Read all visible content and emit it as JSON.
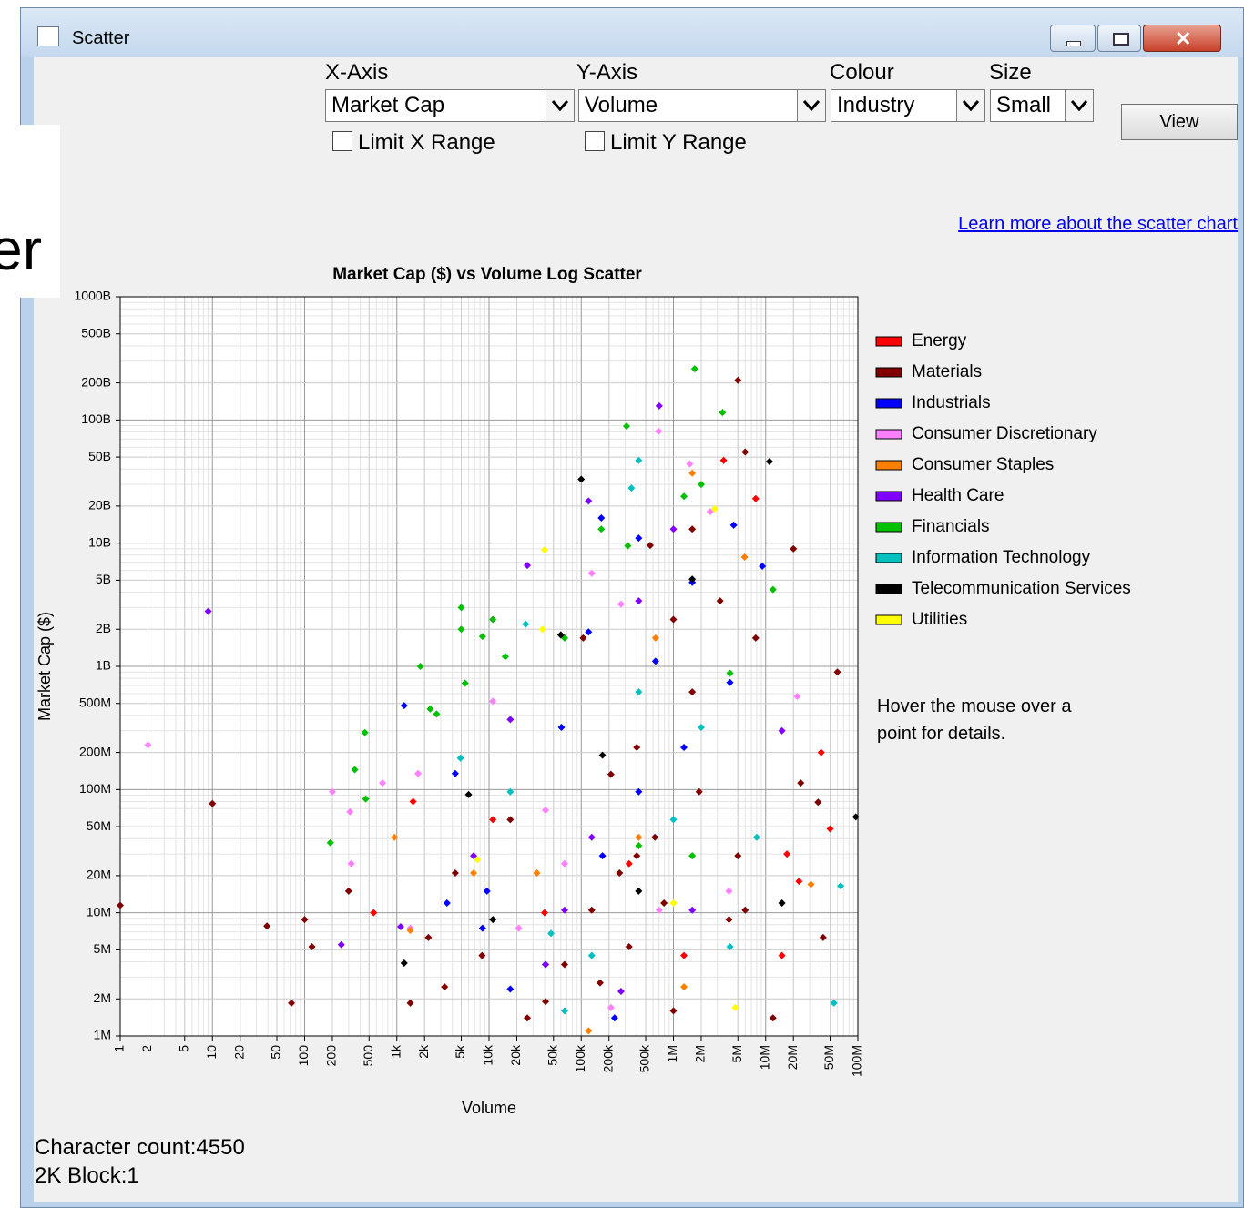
{
  "window": {
    "title": "Scatter",
    "overlay_text": "er"
  },
  "controls": {
    "x_axis": {
      "label": "X-Axis",
      "value": "Market Cap"
    },
    "y_axis": {
      "label": "Y-Axis",
      "value": "Volume"
    },
    "colour": {
      "label": "Colour",
      "value": "Industry"
    },
    "size": {
      "label": "Size",
      "value": "Small"
    },
    "limit_x": "Limit X Range",
    "limit_y": "Limit Y Range",
    "view_button": "View"
  },
  "link": "Learn more about the scatter chart",
  "hint": [
    "Hover the mouse over a",
    "point for details."
  ],
  "status": [
    "Character count:4550",
    "2K Block:1"
  ],
  "chart_data": {
    "type": "scatter",
    "title": "Market Cap ($) vs Volume Log Scatter",
    "x_label": "Volume",
    "y_label": "Market Cap ($)",
    "xlog": true,
    "ylog": true,
    "grid": true,
    "legend": "right",
    "xlim": [
      1,
      100000000
    ],
    "ylim": [
      1000000,
      1000000000000
    ],
    "xticks": [
      1,
      2,
      5,
      10,
      20,
      50,
      100,
      200,
      500,
      {
        "value": 1000,
        "label": "1k"
      },
      {
        "value": 2000,
        "label": "2k"
      },
      {
        "value": 5000,
        "label": "5k"
      },
      {
        "value": 10000,
        "label": "10k"
      },
      {
        "value": 20000,
        "label": "20k"
      },
      {
        "value": 50000,
        "label": "50k"
      },
      {
        "value": 100000,
        "label": "100k"
      },
      {
        "value": 200000,
        "label": "200k"
      },
      {
        "value": 500000,
        "label": "500k"
      },
      {
        "value": 1000000,
        "label": "1M"
      },
      {
        "value": 2000000,
        "label": "2M"
      },
      {
        "value": 5000000,
        "label": "5M"
      },
      {
        "value": 10000000,
        "label": "10M"
      },
      {
        "value": 20000000,
        "label": "20M"
      },
      {
        "value": 50000000,
        "label": "50M"
      },
      {
        "value": 100000000,
        "label": "100M"
      }
    ],
    "yticks": [
      {
        "value": 1000000,
        "label": "1M"
      },
      {
        "value": 2000000,
        "label": "2M"
      },
      {
        "value": 5000000,
        "label": "5M"
      },
      {
        "value": 10000000,
        "label": "10M"
      },
      {
        "value": 20000000,
        "label": "20M"
      },
      {
        "value": 50000000,
        "label": "50M"
      },
      {
        "value": 100000000,
        "label": "100M"
      },
      {
        "value": 200000000,
        "label": "200M"
      },
      {
        "value": 500000000,
        "label": "500M"
      },
      {
        "value": 1000000000,
        "label": "1B"
      },
      {
        "value": 2000000000,
        "label": "2B"
      },
      {
        "value": 5000000000,
        "label": "5B"
      },
      {
        "value": 10000000000,
        "label": "10B"
      },
      {
        "value": 20000000000,
        "label": "20B"
      },
      {
        "value": 50000000000,
        "label": "50B"
      },
      {
        "value": 100000000000,
        "label": "100B"
      },
      {
        "value": 200000000000,
        "label": "200B"
      },
      {
        "value": 500000000000,
        "label": "500B"
      },
      {
        "value": 1000000000000,
        "label": "1000B"
      }
    ],
    "series": [
      {
        "name": "Energy",
        "color": "#ff0000",
        "x": [
          3500000,
          7800000,
          40000000,
          50000000,
          560,
          1500,
          17000000,
          330000,
          40000,
          1300000,
          11000,
          15000000,
          23000000
        ],
        "values": [
          47000000000,
          23000000000,
          200000000,
          48000000,
          10000000,
          80000000,
          30000000,
          25000000,
          10000000,
          4500000,
          57000000,
          4500000,
          18000000
        ]
      },
      {
        "name": "Materials",
        "color": "#800000",
        "x": [
          10,
          1,
          39,
          72,
          100,
          120,
          300,
          5000000,
          6000000,
          20000000,
          60000000,
          260000,
          400000,
          630000,
          130000,
          41000,
          1000000,
          4000000,
          3200000,
          7800000,
          24000000,
          37000000,
          1600000,
          560000,
          105000,
          17000,
          4300,
          66000,
          210000,
          1600000,
          12000000,
          42000000,
          26000,
          8400,
          2200,
          1400,
          3300,
          400000,
          1900000,
          790000,
          330000,
          160000,
          1000000,
          5000000,
          6000000
        ],
        "values": [
          77000000,
          11500000,
          7800000,
          1850000,
          8800000,
          5300000,
          15000000,
          210000000000,
          55000000000,
          9000000000,
          900000000,
          21000000,
          29000000,
          41000000,
          10500000,
          1900000,
          1600000,
          8800000,
          3400000000,
          1700000000,
          113000000,
          79000000,
          13000000000,
          9600000000,
          1700000000,
          57000000,
          21000000,
          3800000,
          133000000,
          620000000,
          1400000,
          6300000,
          1400000,
          4500000,
          6300000,
          1850000,
          2500000,
          220000000,
          96000000,
          12000000,
          5300000,
          2700000,
          2400000000,
          29000000,
          10500000
        ]
      },
      {
        "name": "Industrials",
        "color": "#0000ff",
        "x": [
          1200,
          9500,
          3500,
          120000,
          165000,
          420000,
          640000,
          1600000,
          4500000,
          9200000,
          41000,
          17000,
          230000,
          420000,
          1300000,
          4100000,
          170000,
          8500,
          61000,
          4300
        ],
        "values": [
          480000000,
          15000000,
          12000000,
          1900000000,
          16000000000,
          11000000000,
          1100000000,
          4800000000,
          14000000000,
          6500000000,
          3800000,
          2400000,
          1400000,
          96000000,
          220000000,
          740000000,
          29000000,
          7500000,
          320000000,
          135000000
        ]
      },
      {
        "name": "Consumer Discretionary",
        "color": "#ff80ff",
        "x": [
          2,
          200,
          310,
          320,
          700,
          1700,
          690000,
          1500000,
          2500000,
          22000000,
          41000,
          130000,
          270000,
          11000,
          21000,
          700000,
          4000000,
          210000,
          66000,
          1400
        ],
        "values": [
          230000000,
          96000000,
          66000000,
          25000000,
          113000000,
          135000000,
          81000000000,
          44000000000,
          18000000000,
          570000000,
          68000000,
          5700000000,
          3200000000,
          520000000,
          7500000,
          10500000,
          15000000,
          1700000,
          25000000,
          7500000
        ]
      },
      {
        "name": "Consumer Staples",
        "color": "#ff8000",
        "x": [
          940,
          1400,
          1600000,
          120000,
          1300000,
          5900000,
          31000000,
          640000,
          6800,
          420000,
          33000
        ],
        "values": [
          41000000,
          7200000,
          37000000000,
          1100000,
          2500000,
          7700000000,
          17000000,
          1700000000,
          21000000,
          41000000,
          21000000
        ]
      },
      {
        "name": "Health Care",
        "color": "#8000ff",
        "x": [
          9,
          250,
          700000,
          26000,
          120000,
          1000000,
          15000000,
          66000,
          270000,
          41000,
          420000,
          17000,
          130000,
          1600000,
          6800,
          1100
        ],
        "values": [
          2800000000,
          5500000,
          130000000000,
          6600000000,
          22000000000,
          13000000000,
          300000000,
          10500000,
          2300000,
          3800000,
          3400000000,
          370000000,
          41000000,
          10500000,
          29000000,
          7700000
        ]
      },
      {
        "name": "Financials",
        "color": "#00c000",
        "x": [
          1700000,
          3400000,
          310000,
          190,
          350,
          460,
          450,
          1800,
          2300,
          5000,
          5000,
          11000,
          8500,
          15000,
          5500,
          2700,
          12000000,
          1300000,
          2000000,
          165000,
          320000,
          4100000,
          66000,
          420000,
          1600000
        ],
        "values": [
          260000000000,
          115000000000,
          89000000000,
          37000000,
          145000000,
          84000000,
          290000000,
          1000000000,
          450000000,
          3000000000,
          2000000000,
          2400000000,
          1750000000,
          1200000000,
          730000000,
          410000000,
          4200000000,
          24000000000,
          30000000000,
          13000000000,
          9500000000,
          880000000,
          1700000000,
          35000000,
          29000000
        ]
      },
      {
        "name": "Information Technology",
        "color": "#00c0c0",
        "x": [
          55000000,
          65000000,
          66000,
          420000,
          350000,
          25000,
          4900,
          130000,
          1000000,
          2000000,
          4100000,
          47000,
          17000,
          8000000,
          420000
        ],
        "values": [
          1850000,
          16500000,
          1600000,
          47000000000,
          28000000000,
          2200000000,
          180000000,
          4500000,
          57000000,
          320000000,
          5300000,
          6800000,
          96000000,
          41000000,
          620000000
        ]
      },
      {
        "name": "Telecommunication Services",
        "color": "#000000",
        "x": [
          100000,
          11000000,
          95000000,
          1200,
          60000,
          1600000,
          6000,
          420000,
          15000000,
          11000,
          170000
        ],
        "values": [
          33000000000,
          46000000000,
          60000000,
          3900000,
          1800000000,
          5100000000,
          91000000,
          15000000,
          12000000,
          8800000,
          190000000
        ]
      },
      {
        "name": "Utilities",
        "color": "#ffff00",
        "x": [
          40000,
          2800000,
          4700000,
          7500,
          38000,
          1000000
        ],
        "values": [
          8800000000,
          19000000000,
          1700000,
          27000000,
          2000000000,
          12000000
        ]
      }
    ]
  }
}
